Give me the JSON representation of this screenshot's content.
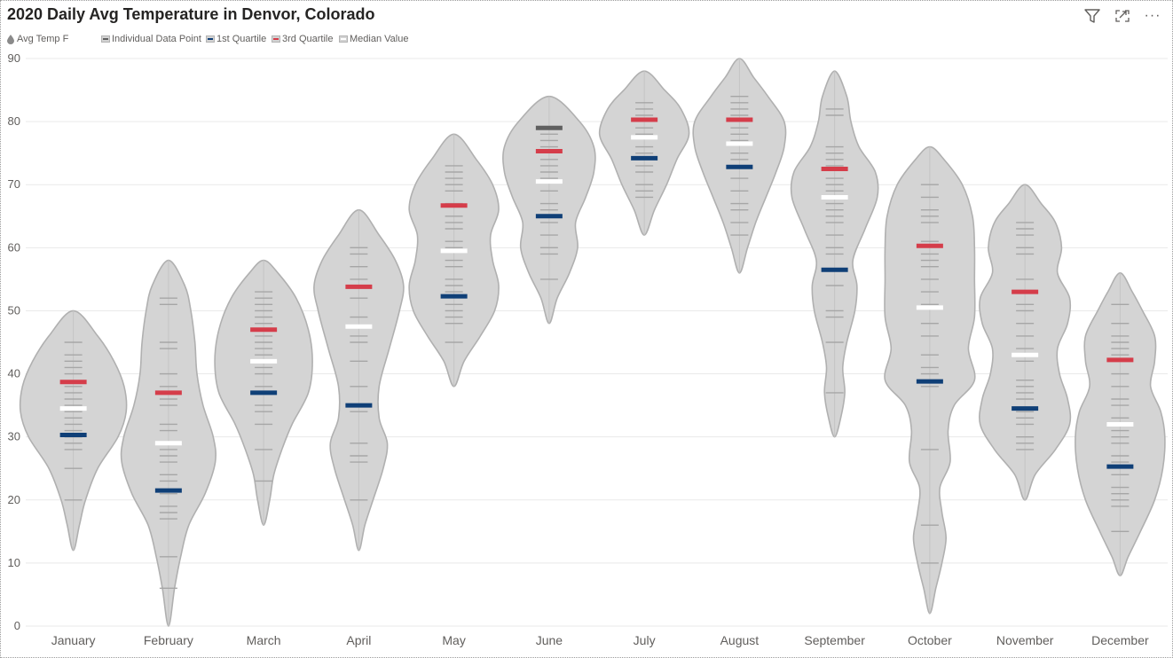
{
  "title": "2020 Daily Avg Temperature in Denvor, Colorado",
  "toolbar": {
    "icons": [
      "filter-icon",
      "focus-mode-icon",
      "more-options-icon"
    ],
    "more_glyph": "···"
  },
  "legend": {
    "series_label": "Avg Temp F",
    "items": [
      {
        "label": "Individual Data Point",
        "color": "#606060"
      },
      {
        "label": "1st Quartile",
        "color": "#0f3f77"
      },
      {
        "label": "3rd Quartile",
        "color": "#d53d4a"
      },
      {
        "label": "Median Value",
        "color": "#ffffff"
      }
    ]
  },
  "colors": {
    "violin_fill": "#d4d4d4",
    "violin_stroke": "#b0b0b0",
    "point": "#a6a6a6",
    "highlight_point": "#606060",
    "q1": "#0f3f77",
    "q3": "#d53d4a",
    "median": "#ffffff",
    "grid": "#e9e9e9"
  },
  "chart_data": {
    "type": "violin",
    "title": "2020 Daily Avg Temperature in Denvor, Colorado",
    "series_name": "Avg Temp F",
    "ylim": [
      0,
      90
    ],
    "yticks": [
      "0",
      "10",
      "20",
      "30",
      "40",
      "50",
      "60",
      "70",
      "80",
      "90"
    ],
    "grid": true,
    "legend_position": "top-left",
    "categories": [
      "January",
      "February",
      "March",
      "April",
      "May",
      "June",
      "July",
      "August",
      "September",
      "October",
      "November",
      "December"
    ],
    "months": [
      {
        "name": "January",
        "min": 12,
        "max": 50,
        "q1": 30.3,
        "median": 34.5,
        "q3": 38.7,
        "profile": [
          [
            12,
            0
          ],
          [
            16,
            3
          ],
          [
            20,
            6
          ],
          [
            25,
            12
          ],
          [
            30,
            22
          ],
          [
            34,
            26
          ],
          [
            38,
            25
          ],
          [
            42,
            20
          ],
          [
            46,
            12
          ],
          [
            50,
            0
          ]
        ],
        "points": [
          20,
          25,
          28,
          29,
          30,
          31,
          32,
          33,
          34,
          35,
          36,
          37,
          38,
          40,
          41,
          42,
          43,
          45
        ]
      },
      {
        "name": "February",
        "min": 0,
        "max": 58,
        "q1": 21.5,
        "median": 29,
        "q3": 37,
        "profile": [
          [
            0,
            0
          ],
          [
            6,
            3
          ],
          [
            11,
            6
          ],
          [
            16,
            10
          ],
          [
            21,
            18
          ],
          [
            26,
            23
          ],
          [
            30,
            22
          ],
          [
            35,
            17
          ],
          [
            40,
            14
          ],
          [
            45,
            13
          ],
          [
            50,
            11
          ],
          [
            54,
            8
          ],
          [
            58,
            0
          ]
        ],
        "points": [
          6,
          11,
          17,
          18,
          19,
          21,
          23,
          24,
          26,
          27,
          28,
          31,
          32,
          35,
          36,
          38,
          40,
          44,
          45,
          51,
          52
        ]
      },
      {
        "name": "March",
        "min": 16,
        "max": 58,
        "q1": 37,
        "median": 42,
        "q3": 47,
        "profile": [
          [
            16,
            0
          ],
          [
            20,
            3
          ],
          [
            24,
            5
          ],
          [
            28,
            9
          ],
          [
            32,
            14
          ],
          [
            37,
            22
          ],
          [
            42,
            24
          ],
          [
            47,
            22
          ],
          [
            52,
            16
          ],
          [
            56,
            7
          ],
          [
            58,
            0
          ]
        ],
        "points": [
          23,
          28,
          32,
          34,
          35,
          38,
          40,
          41,
          43,
          44,
          45,
          46,
          48,
          49,
          50,
          51,
          52,
          53
        ]
      },
      {
        "name": "April",
        "min": 12,
        "max": 66,
        "q1": 35,
        "median": 47.5,
        "q3": 53.8,
        "profile": [
          [
            12,
            0
          ],
          [
            16,
            3
          ],
          [
            20,
            7
          ],
          [
            25,
            12
          ],
          [
            29,
            14
          ],
          [
            33,
            10
          ],
          [
            38,
            10
          ],
          [
            44,
            15
          ],
          [
            50,
            20
          ],
          [
            54,
            22
          ],
          [
            58,
            18
          ],
          [
            62,
            10
          ],
          [
            66,
            0
          ]
        ],
        "points": [
          20,
          26,
          27,
          29,
          34,
          38,
          42,
          45,
          46,
          49,
          52,
          55,
          57,
          59,
          60
        ]
      },
      {
        "name": "May",
        "min": 38,
        "max": 78,
        "q1": 52.3,
        "median": 59.5,
        "q3": 66.7,
        "profile": [
          [
            38,
            0
          ],
          [
            42,
            5
          ],
          [
            46,
            13
          ],
          [
            50,
            20
          ],
          [
            54,
            22
          ],
          [
            58,
            19
          ],
          [
            62,
            18
          ],
          [
            66,
            22
          ],
          [
            70,
            19
          ],
          [
            74,
            11
          ],
          [
            78,
            0
          ]
        ],
        "points": [
          45,
          48,
          49,
          50,
          51,
          53,
          54,
          55,
          57,
          58,
          60,
          61,
          63,
          64,
          65,
          67,
          69,
          70,
          71,
          72,
          73
        ]
      },
      {
        "name": "June",
        "min": 48,
        "max": 84,
        "q1": 65,
        "median": 70.5,
        "q3": 75.3,
        "profile": [
          [
            48,
            0
          ],
          [
            52,
            4
          ],
          [
            56,
            10
          ],
          [
            60,
            14
          ],
          [
            64,
            13
          ],
          [
            68,
            18
          ],
          [
            72,
            22
          ],
          [
            76,
            22
          ],
          [
            80,
            15
          ],
          [
            84,
            0
          ]
        ],
        "points": [
          55,
          59,
          60,
          62,
          64,
          66,
          67,
          69,
          71,
          72,
          73,
          74,
          76,
          77,
          78
        ]
      },
      {
        "name": "July",
        "min": 62,
        "max": 88,
        "q1": 74.2,
        "median": 77.5,
        "q3": 80.3,
        "profile": [
          [
            62,
            0
          ],
          [
            66,
            5
          ],
          [
            70,
            11
          ],
          [
            74,
            16
          ],
          [
            78,
            22
          ],
          [
            82,
            18
          ],
          [
            85,
            10
          ],
          [
            88,
            0
          ]
        ],
        "points": [
          68,
          69,
          70,
          72,
          73,
          75,
          76,
          78,
          79,
          81,
          82,
          83
        ]
      },
      {
        "name": "August",
        "min": 56,
        "max": 90,
        "q1": 72.8,
        "median": 76.5,
        "q3": 80.3,
        "profile": [
          [
            56,
            0
          ],
          [
            60,
            4
          ],
          [
            64,
            8
          ],
          [
            68,
            13
          ],
          [
            72,
            18
          ],
          [
            76,
            22
          ],
          [
            80,
            22
          ],
          [
            84,
            14
          ],
          [
            87,
            7
          ],
          [
            90,
            0
          ]
        ],
        "points": [
          62,
          64,
          66,
          67,
          69,
          71,
          73,
          74,
          75,
          77,
          78,
          79,
          81,
          82,
          83,
          84
        ]
      },
      {
        "name": "September",
        "min": 30,
        "max": 88,
        "q1": 56.5,
        "median": 68,
        "q3": 72.5,
        "profile": [
          [
            30,
            0
          ],
          [
            33,
            3
          ],
          [
            37,
            5
          ],
          [
            41,
            4
          ],
          [
            45,
            6
          ],
          [
            50,
            10
          ],
          [
            54,
            11
          ],
          [
            58,
            9
          ],
          [
            63,
            15
          ],
          [
            68,
            21
          ],
          [
            72,
            20
          ],
          [
            76,
            12
          ],
          [
            80,
            8
          ],
          [
            84,
            6
          ],
          [
            88,
            0
          ]
        ],
        "points": [
          37,
          45,
          49,
          50,
          54,
          59,
          60,
          62,
          64,
          65,
          66,
          67,
          69,
          70,
          71,
          73,
          74,
          75,
          76,
          81,
          82
        ]
      },
      {
        "name": "October",
        "min": 2,
        "max": 76,
        "q1": 38.8,
        "median": 50.5,
        "q3": 60.3,
        "profile": [
          [
            2,
            0
          ],
          [
            6,
            3
          ],
          [
            10,
            6
          ],
          [
            14,
            8
          ],
          [
            18,
            6
          ],
          [
            22,
            5
          ],
          [
            26,
            10
          ],
          [
            31,
            9
          ],
          [
            35,
            12
          ],
          [
            39,
            22
          ],
          [
            44,
            19
          ],
          [
            49,
            22
          ],
          [
            55,
            22
          ],
          [
            60,
            22
          ],
          [
            65,
            21
          ],
          [
            70,
            16
          ],
          [
            74,
            7
          ],
          [
            76,
            0
          ]
        ],
        "points": [
          10,
          16,
          28,
          38,
          40,
          41,
          43,
          46,
          48,
          51,
          53,
          55,
          57,
          58,
          59,
          61,
          64,
          65,
          66,
          68,
          70
        ]
      },
      {
        "name": "November",
        "min": 20,
        "max": 70,
        "q1": 34.5,
        "median": 43,
        "q3": 53,
        "profile": [
          [
            20,
            0
          ],
          [
            24,
            5
          ],
          [
            28,
            15
          ],
          [
            32,
            22
          ],
          [
            36,
            21
          ],
          [
            40,
            17
          ],
          [
            44,
            16
          ],
          [
            48,
            21
          ],
          [
            52,
            22
          ],
          [
            56,
            16
          ],
          [
            60,
            18
          ],
          [
            64,
            15
          ],
          [
            67,
            8
          ],
          [
            70,
            0
          ]
        ],
        "points": [
          28,
          29,
          30,
          32,
          33,
          34,
          36,
          37,
          38,
          39,
          42,
          44,
          46,
          48,
          50,
          51,
          53,
          55,
          59,
          60,
          62,
          63,
          64
        ]
      },
      {
        "name": "December",
        "min": 8,
        "max": 56,
        "q1": 25.3,
        "median": 32,
        "q3": 42.2,
        "profile": [
          [
            8,
            0
          ],
          [
            11,
            4
          ],
          [
            15,
            10
          ],
          [
            20,
            17
          ],
          [
            25,
            21
          ],
          [
            30,
            22
          ],
          [
            34,
            20
          ],
          [
            38,
            15
          ],
          [
            42,
            17
          ],
          [
            46,
            17
          ],
          [
            50,
            11
          ],
          [
            53,
            6
          ],
          [
            56,
            0
          ]
        ],
        "points": [
          15,
          19,
          20,
          21,
          22,
          24,
          26,
          27,
          29,
          30,
          31,
          33,
          35,
          36,
          38,
          40,
          43,
          44,
          45,
          46,
          48,
          51
        ]
      }
    ]
  }
}
